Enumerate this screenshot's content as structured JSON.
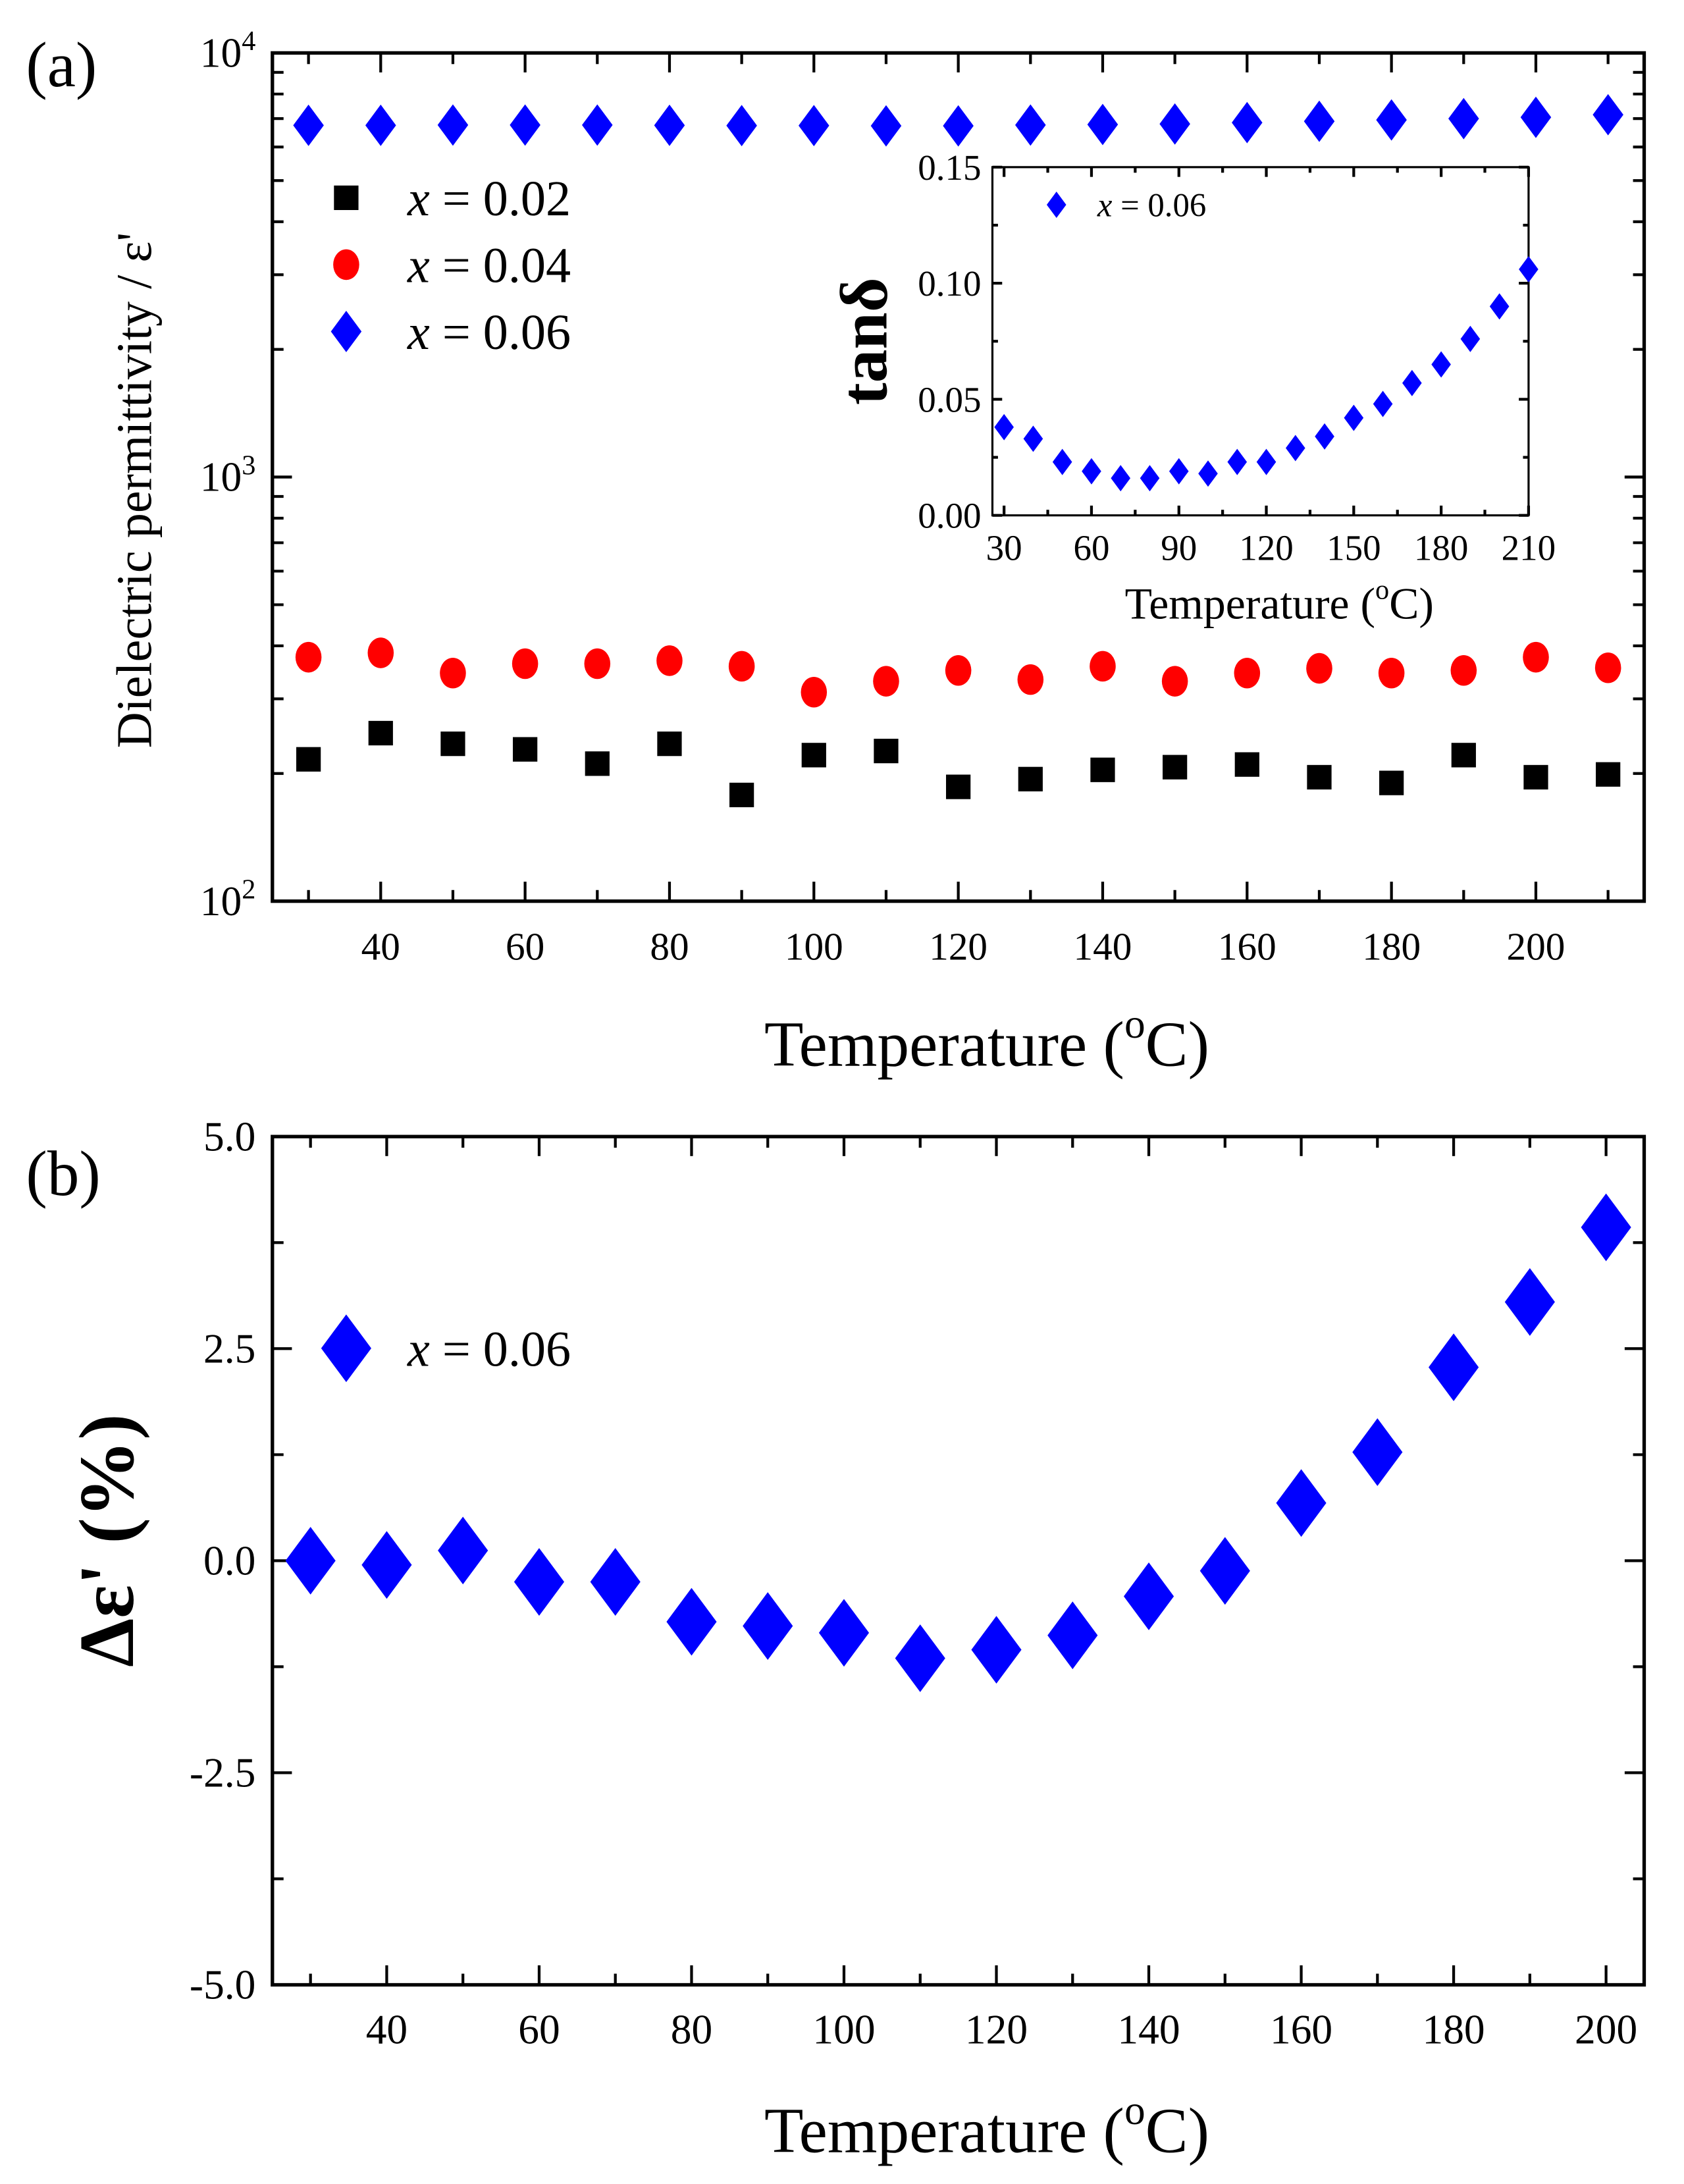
{
  "chart_data": [
    {
      "panel_label": "(a)",
      "type": "scatter",
      "xlabel": "Temperature (",
      "xlabel_sup": "o",
      "xlabel_end": "C)",
      "ylabel": "Dielectric permittivity / ε'",
      "yscale": "log",
      "xlim": [
        25,
        215
      ],
      "ylim": [
        100,
        10000
      ],
      "xticks": [
        40,
        60,
        80,
        100,
        120,
        140,
        160,
        180,
        200
      ],
      "yticks": [
        {
          "base": "10",
          "exp": "2",
          "value": 100
        },
        {
          "base": "10",
          "exp": "3",
          "value": 1000
        },
        {
          "base": "10",
          "exp": "4",
          "value": 10000
        }
      ],
      "legend_position": "top-left",
      "x": [
        30,
        40,
        50,
        60,
        70,
        80,
        90,
        100,
        110,
        120,
        130,
        140,
        150,
        160,
        170,
        180,
        190,
        200,
        210
      ],
      "series": [
        {
          "name": "x = 0.02",
          "var": "x",
          "rest": " = 0.02",
          "marker": "square",
          "color": "#000000",
          "values": [
            216,
            249,
            235,
            228,
            211,
            235,
            178,
            221,
            226,
            186,
            194,
            204,
            207,
            210,
            196,
            190,
            221,
            196,
            199
          ]
        },
        {
          "name": "x = 0.04",
          "var": "x",
          "rest": " = 0.04",
          "marker": "circle",
          "color": "#ff0000",
          "values": [
            376,
            385,
            345,
            363,
            363,
            369,
            358,
            311,
            330,
            350,
            333,
            358,
            330,
            345,
            354,
            345,
            350,
            376,
            355
          ]
        },
        {
          "name": "x = 0.06",
          "var": "x",
          "rest": " = 0.06",
          "marker": "diamond",
          "color": "#0000ff",
          "values": [
            6750,
            6750,
            6760,
            6760,
            6760,
            6750,
            6740,
            6740,
            6730,
            6730,
            6760,
            6780,
            6800,
            6850,
            6900,
            6950,
            7000,
            7050,
            7150
          ]
        }
      ],
      "inset": {
        "type": "scatter",
        "xlabel": "Temperature (",
        "xlabel_sup": "o",
        "xlabel_end": "C)",
        "ylabel": "tanδ",
        "xlim": [
          26,
          210
        ],
        "ylim": [
          0,
          0.15
        ],
        "xticks": [
          30,
          60,
          90,
          120,
          150,
          180,
          210
        ],
        "yticks": [
          "0.00",
          "0.05",
          "0.10",
          "0.15"
        ],
        "legend": {
          "var": "x",
          "rest": " = 0.06",
          "color": "#0000ff"
        },
        "x": [
          30,
          40,
          50,
          60,
          70,
          80,
          90,
          100,
          110,
          120,
          130,
          140,
          150,
          160,
          170,
          180,
          190,
          200,
          210
        ],
        "values": [
          0.038,
          0.033,
          0.023,
          0.019,
          0.016,
          0.016,
          0.019,
          0.018,
          0.023,
          0.023,
          0.029,
          0.034,
          0.042,
          0.048,
          0.057,
          0.065,
          0.076,
          0.09,
          0.106
        ]
      }
    },
    {
      "panel_label": "(b)",
      "type": "scatter",
      "xlabel": "Temperature (",
      "xlabel_sup": "o",
      "xlabel_end": "C)",
      "ylabel": "Δε' (%)",
      "xlim": [
        25,
        205
      ],
      "ylim": [
        -5,
        5
      ],
      "xticks": [
        40,
        60,
        80,
        100,
        120,
        140,
        160,
        180,
        200
      ],
      "yticks": [
        "-5.0",
        "-2.5",
        "0.0",
        "2.5",
        "5.0"
      ],
      "legend_position": "top-left",
      "series": [
        {
          "name": "x = 0.06",
          "var": "x",
          "rest": " = 0.06",
          "marker": "diamond",
          "color": "#0000ff",
          "x": [
            30,
            40,
            50,
            60,
            70,
            80,
            90,
            100,
            110,
            120,
            130,
            140,
            150,
            160,
            170,
            180,
            190,
            200
          ],
          "values": [
            0.0,
            -0.05,
            0.12,
            -0.25,
            -0.25,
            -0.72,
            -0.77,
            -0.85,
            -1.15,
            -1.05,
            -0.88,
            -0.42,
            -0.12,
            0.68,
            1.28,
            2.28,
            3.05,
            3.93
          ]
        }
      ]
    }
  ]
}
